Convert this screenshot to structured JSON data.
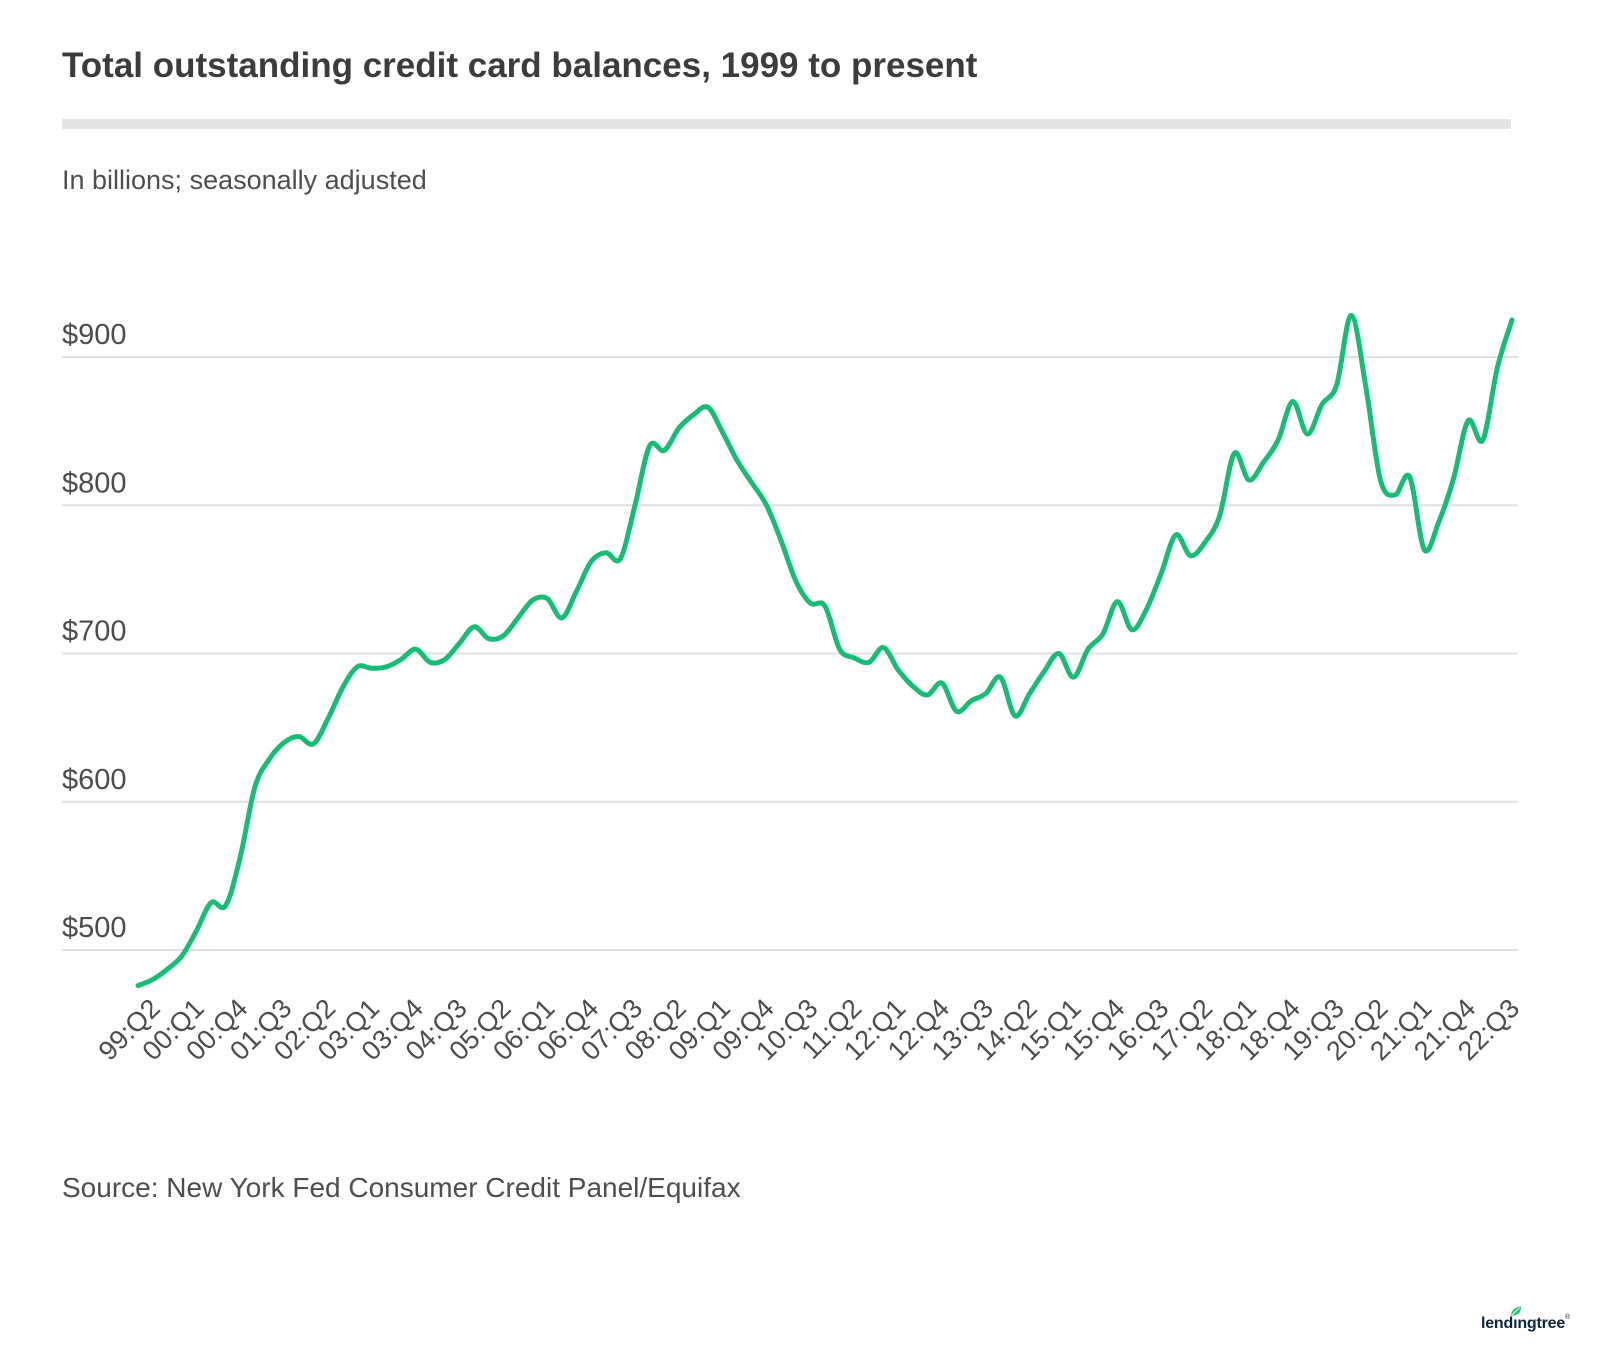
{
  "header": {
    "title": "Total outstanding credit card balances, 1999 to present",
    "subtitle": "In billions; seasonally adjusted"
  },
  "footer": {
    "source": "Source: New York Fed Consumer Credit Panel/Equifax",
    "brand": {
      "prefix": "lend",
      "i": "ı",
      "suffix": "ngtree",
      "mark": "®"
    }
  },
  "colors": {
    "line": "#17bd74",
    "gridline": "#e0e0e0",
    "axis_label": "#4c4c4c",
    "divider": "#e4e4e4",
    "logo_navy": "#0b2540",
    "leaf_green": "#2dbd73"
  },
  "chart_data": {
    "type": "line",
    "title": "Total outstanding credit card balances, 1999 to present",
    "subtitle": "In billions; seasonally adjusted",
    "source": "Source: New York Fed Consumer Credit Panel/Equifax",
    "unit": "USD billions",
    "frequency": "quarterly",
    "start_period": "1999:Q1",
    "end_period": "2022:Q3",
    "xlabel": "",
    "ylabel": "",
    "yticks": [
      500,
      600,
      700,
      800,
      900
    ],
    "ytick_prefix": "$",
    "ylim": [
      465,
      940
    ],
    "grid": "horizontal",
    "legend": "none",
    "x_tick_every": 3,
    "x_tick_start_index": 1,
    "x_tick_labels": [
      "99:Q2",
      "00:Q1",
      "00:Q4",
      "01:Q3",
      "02:Q2",
      "03:Q1",
      "03:Q4",
      "04:Q3",
      "05:Q2",
      "06:Q1",
      "06:Q4",
      "07:Q3",
      "08:Q2",
      "09:Q1",
      "09:Q4",
      "10:Q3",
      "11:Q2",
      "12:Q1",
      "12:Q4",
      "13:Q3",
      "14:Q2",
      "15:Q1",
      "15:Q4",
      "16:Q3",
      "17:Q2",
      "18:Q1",
      "18:Q4",
      "19:Q3",
      "20:Q2",
      "21:Q1",
      "21:Q4",
      "22:Q3"
    ],
    "series": [
      {
        "name": "Total outstanding credit card balances",
        "values": [
          476,
          480,
          487,
          496,
          513,
          532,
          530,
          563,
          610,
          629,
          640,
          644,
          639,
          656,
          677,
          691,
          690,
          691,
          696,
          703,
          694,
          696,
          707,
          718,
          710,
          712,
          724,
          736,
          737,
          724,
          742,
          762,
          768,
          764,
          800,
          840,
          837,
          852,
          861,
          866,
          849,
          830,
          815,
          800,
          776,
          749,
          734,
          732,
          703,
          697,
          694,
          704,
          689,
          678,
          672,
          680,
          661,
          668,
          673,
          684,
          658,
          673,
          688,
          700,
          684,
          703,
          713,
          735,
          716,
          730,
          754,
          780,
          766,
          775,
          793,
          835,
          817,
          829,
          844,
          870,
          848,
          868,
          881,
          928,
          880,
          817,
          807,
          819,
          770,
          789,
          818,
          857,
          844,
          893,
          925
        ]
      }
    ]
  }
}
